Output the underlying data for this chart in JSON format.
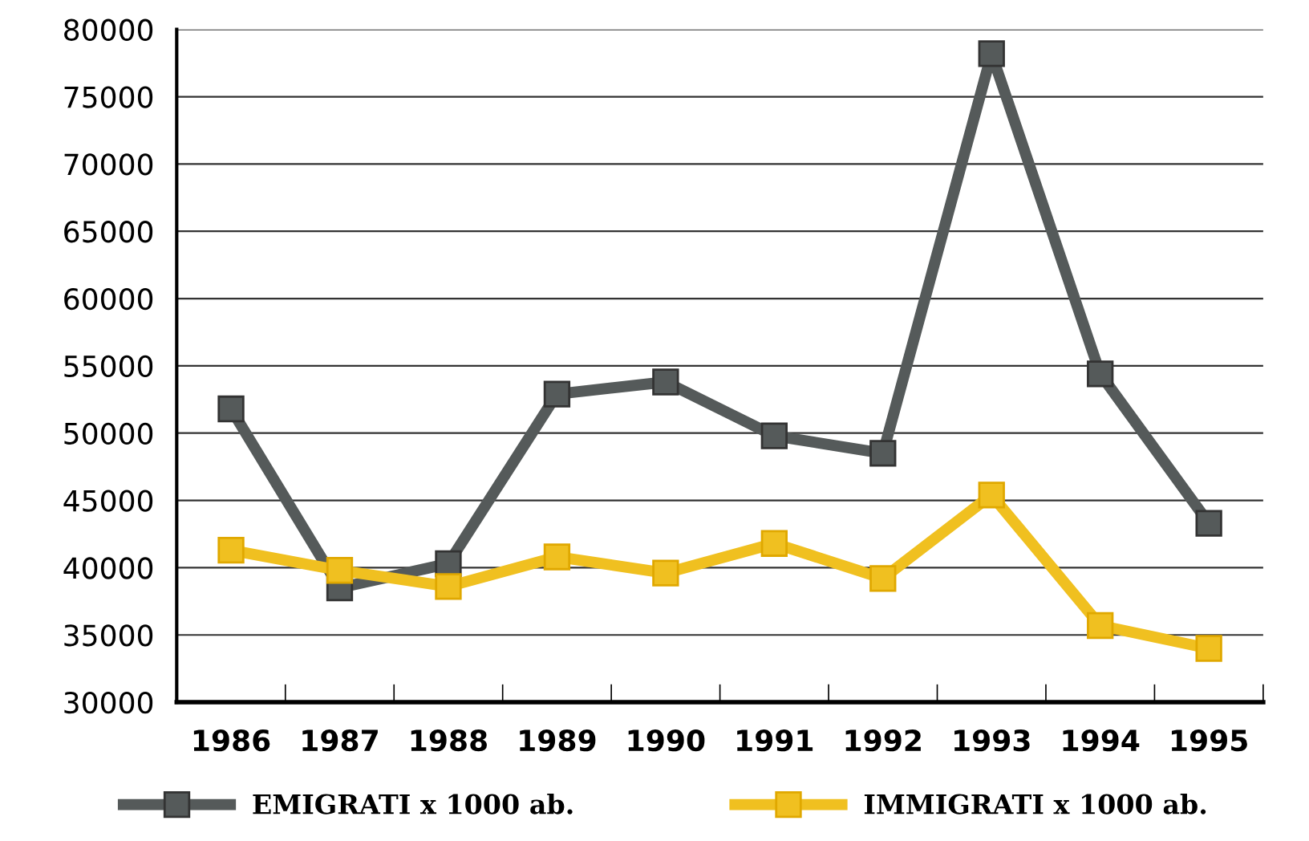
{
  "chart_data": {
    "type": "line",
    "categories": [
      "1986",
      "1987",
      "1988",
      "1989",
      "1990",
      "1991",
      "1992",
      "1993",
      "1994",
      "1995"
    ],
    "series": [
      {
        "name": "EMIGRATI x 1000 ab.",
        "color": "#555a5a",
        "values": [
          51800,
          38500,
          40300,
          52900,
          53800,
          49800,
          48500,
          78200,
          54400,
          43300
        ]
      },
      {
        "name": "IMMIGRATI x 1000 ab.",
        "color": "#f0c020",
        "values": [
          41300,
          39800,
          38600,
          40800,
          39600,
          41800,
          39200,
          45400,
          35700,
          34000
        ]
      }
    ],
    "ylim": [
      30000,
      80000
    ],
    "yticks": [
      30000,
      35000,
      40000,
      45000,
      50000,
      55000,
      60000,
      65000,
      70000,
      75000,
      80000
    ],
    "grid": "y",
    "legend": "bottom",
    "marker": "square",
    "line_style": "solid"
  }
}
